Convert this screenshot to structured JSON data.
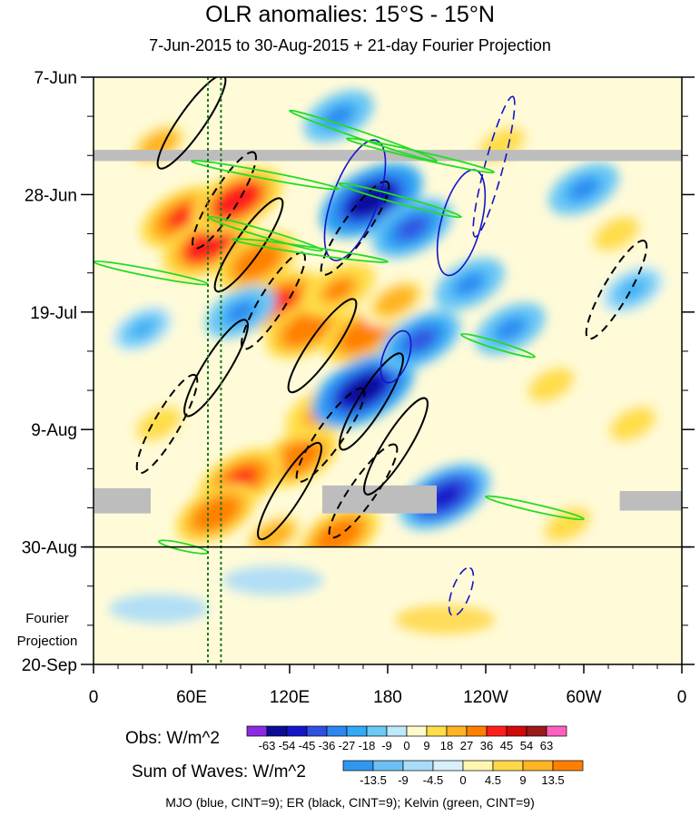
{
  "chart_data": {
    "type": "heatmap",
    "title": "OLR anomalies: 15°S - 15°N",
    "subtitle": "7-Jun-2015 to 30-Aug-2015 + 21-day Fourier Projection",
    "x_tick_labels": [
      "0",
      "60E",
      "120E",
      "180",
      "120W",
      "60W",
      "0"
    ],
    "x_ticks_deg": [
      0,
      60,
      120,
      180,
      240,
      300,
      360
    ],
    "xlim": [
      0,
      360
    ],
    "y_tick_labels": [
      "7-Jun",
      "28-Jun",
      "19-Jul",
      "9-Aug",
      "30-Aug",
      "20-Sep"
    ],
    "y_ticks_day": [
      0,
      21,
      42,
      63,
      84,
      105
    ],
    "ylim_days": [
      0,
      105
    ],
    "y_axis_direction": "time increases downward",
    "projection_label": [
      "Fourier",
      "Projection"
    ],
    "observed_period_end_day": 84,
    "missing_data_bands": [
      {
        "day_start": 13,
        "day_end": 15,
        "lon_start": 0,
        "lon_end": 360
      },
      {
        "day_start": 73.5,
        "day_end": 78,
        "lon_start": 0,
        "lon_end": 35
      },
      {
        "day_start": 73,
        "day_end": 78,
        "lon_start": 140,
        "lon_end": 210
      },
      {
        "day_start": 74,
        "day_end": 77.5,
        "lon_start": 322,
        "lon_end": 360
      }
    ],
    "reference_lines_lon": [
      70,
      78
    ],
    "obs_colorbar": {
      "title": "Obs: W/m^2",
      "levels": [
        -63,
        -54,
        -45,
        -36,
        -27,
        -18,
        -9,
        0,
        9,
        18,
        27,
        36,
        45,
        54,
        63
      ],
      "colors": [
        "#8a2be2",
        "#0b0b96",
        "#1515c8",
        "#3050e0",
        "#2f86f0",
        "#33aaf5",
        "#6cc8f5",
        "#bfe9fb",
        "#fffacd",
        "#ffde4a",
        "#ffb424",
        "#ff8000",
        "#ff1e1e",
        "#d10a0a",
        "#9a1a1a",
        "#ff5fbf"
      ]
    },
    "waves_colorbar": {
      "title": "Sum of Waves: W/m^2",
      "levels": [
        "-13.5",
        "-9",
        "-4.5",
        "0",
        "4.5",
        "9",
        "13.5"
      ],
      "colors": [
        "#3097f0",
        "#6cc0f5",
        "#a8dcf8",
        "#d7f0fb",
        "#fff6b0",
        "#ffd84a",
        "#ffb424",
        "#ff8000"
      ]
    },
    "wave_contours": [
      {
        "name": "MJO",
        "color": "#1414c8"
      },
      {
        "name": "ER",
        "color": "#000000"
      },
      {
        "name": "Kelvin",
        "color": "#22dd22"
      }
    ],
    "caption": "MJO (blue, CINT=9); ER (black, CINT=9); Kelvin (green, CINT=9)",
    "anomaly_features": [
      {
        "sign": "positive",
        "lon": 40,
        "day": 12,
        "strength": 22
      },
      {
        "sign": "positive",
        "lon": 55,
        "day": 25,
        "strength": 40
      },
      {
        "sign": "positive",
        "lon": 70,
        "day": 30,
        "strength": 45
      },
      {
        "sign": "positive",
        "lon": 88,
        "day": 22,
        "strength": 45
      },
      {
        "sign": "positive",
        "lon": 100,
        "day": 33,
        "strength": 36
      },
      {
        "sign": "positive",
        "lon": 115,
        "day": 40,
        "strength": 38
      },
      {
        "sign": "positive",
        "lon": 130,
        "day": 45,
        "strength": 36
      },
      {
        "sign": "positive",
        "lon": 150,
        "day": 38,
        "strength": 30
      },
      {
        "sign": "positive",
        "lon": 165,
        "day": 46,
        "strength": 36
      },
      {
        "sign": "positive",
        "lon": 185,
        "day": 40,
        "strength": 25
      },
      {
        "sign": "positive",
        "lon": 125,
        "day": 68,
        "strength": 36
      },
      {
        "sign": "positive",
        "lon": 140,
        "day": 60,
        "strength": 30
      },
      {
        "sign": "positive",
        "lon": 90,
        "day": 72,
        "strength": 40
      },
      {
        "sign": "positive",
        "lon": 75,
        "day": 78,
        "strength": 36
      },
      {
        "sign": "positive",
        "lon": 150,
        "day": 82,
        "strength": 36
      },
      {
        "sign": "positive",
        "lon": 110,
        "day": 82,
        "strength": 25
      },
      {
        "sign": "positive",
        "lon": 40,
        "day": 62,
        "strength": 18
      },
      {
        "sign": "positive",
        "lon": 280,
        "day": 55,
        "strength": 18
      },
      {
        "sign": "positive",
        "lon": 320,
        "day": 28,
        "strength": 18
      },
      {
        "sign": "positive",
        "lon": 330,
        "day": 62,
        "strength": 18
      },
      {
        "sign": "positive",
        "lon": 290,
        "day": 80,
        "strength": 18
      },
      {
        "sign": "positive",
        "lon": 250,
        "day": 12,
        "strength": 18
      },
      {
        "sign": "positive",
        "lon": 215,
        "day": 97,
        "strength": 10
      },
      {
        "sign": "negative",
        "lon": 170,
        "day": 22,
        "strength": -54
      },
      {
        "sign": "negative",
        "lon": 195,
        "day": 27,
        "strength": -36
      },
      {
        "sign": "negative",
        "lon": 165,
        "day": 56,
        "strength": -54
      },
      {
        "sign": "negative",
        "lon": 200,
        "day": 47,
        "strength": -36
      },
      {
        "sign": "negative",
        "lon": 215,
        "day": 75,
        "strength": -45
      },
      {
        "sign": "negative",
        "lon": 230,
        "day": 37,
        "strength": -27
      },
      {
        "sign": "negative",
        "lon": 255,
        "day": 45,
        "strength": -27
      },
      {
        "sign": "negative",
        "lon": 300,
        "day": 20,
        "strength": -27
      },
      {
        "sign": "negative",
        "lon": 330,
        "day": 38,
        "strength": -20
      },
      {
        "sign": "negative",
        "lon": 150,
        "day": 7,
        "strength": -27
      },
      {
        "sign": "negative",
        "lon": 90,
        "day": 42,
        "strength": -27
      },
      {
        "sign": "negative",
        "lon": 30,
        "day": 45,
        "strength": -18
      },
      {
        "sign": "negative",
        "lon": 110,
        "day": 90,
        "strength": -9
      },
      {
        "sign": "negative",
        "lon": 40,
        "day": 95,
        "strength": -9
      }
    ]
  }
}
